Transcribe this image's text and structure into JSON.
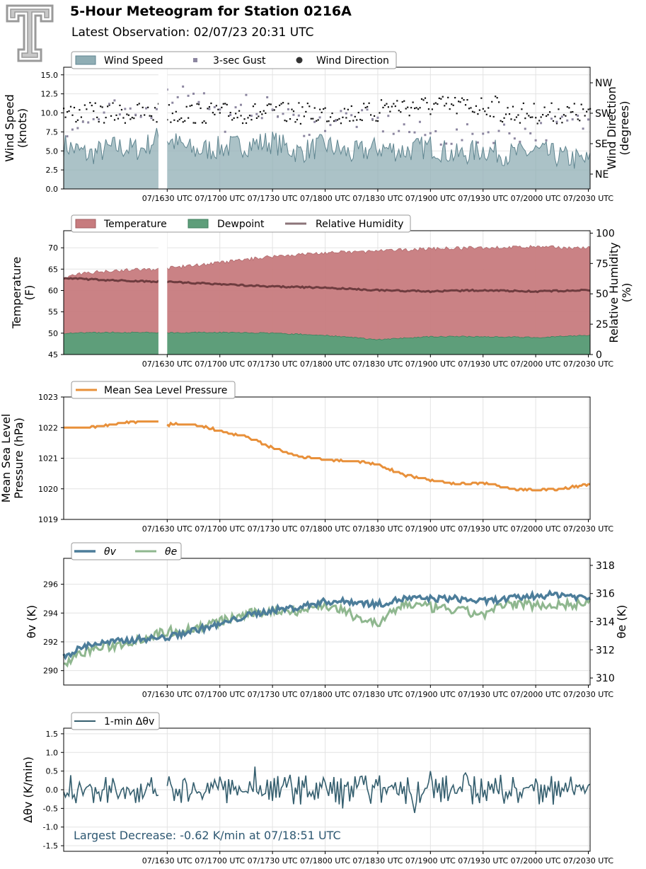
{
  "header": {
    "title": "5-Hour Meteogram for Station 0216A",
    "subtitle": "Latest Observation: 02/07/23 20:31 UTC",
    "logo": "tt-logo"
  },
  "time_ticks": [
    "07/1630 UTC",
    "07/1700 UTC",
    "07/1730 UTC",
    "07/1800 UTC",
    "07/1830 UTC",
    "07/1900 UTC",
    "07/1930 UTC",
    "07/2000 UTC",
    "07/2030 UTC"
  ],
  "chart_data": [
    {
      "id": "wind",
      "type": "area",
      "ylabel": [
        "Wind Speed",
        "(knots)"
      ],
      "ylabel2": [
        "Wind Direction",
        "(degrees)"
      ],
      "ylim": [
        0,
        16
      ],
      "yticks": [
        "0.0",
        "2.5",
        "5.0",
        "7.5",
        "10.0",
        "12.5",
        "15.0"
      ],
      "y2ticks": [
        "NE",
        "SE",
        "SW",
        "NW"
      ],
      "x_range_utc": [
        "15:31",
        "20:31"
      ],
      "data_gap_utc": [
        "16:25",
        "16:30"
      ],
      "legend": [
        "Wind Speed",
        "3-sec Gust",
        "Wind Direction"
      ],
      "series": [
        {
          "name": "Wind Speed",
          "x_utc": [
            "15:31",
            "15:45",
            "16:00",
            "16:15",
            "16:25",
            "16:30",
            "16:45",
            "17:00",
            "17:15",
            "17:30",
            "17:45",
            "18:00",
            "18:15",
            "18:30",
            "18:45",
            "19:00",
            "19:15",
            "19:30",
            "19:45",
            "20:00",
            "20:15",
            "20:31"
          ],
          "values": [
            5.8,
            4.5,
            5.5,
            5.2,
            6.8,
            6.5,
            5.0,
            5.4,
            5.8,
            6.2,
            4.8,
            5.8,
            4.6,
            5.4,
            5.0,
            5.6,
            4.4,
            5.2,
            4.5,
            5.0,
            4.2,
            3.6
          ]
        },
        {
          "name": "3-sec Gust",
          "x_utc": [
            "15:40",
            "16:00",
            "16:10",
            "16:35",
            "16:45",
            "17:05",
            "17:15",
            "17:30",
            "17:50",
            "18:10",
            "18:35",
            "18:55",
            "19:15",
            "19:35",
            "20:00",
            "20:20"
          ],
          "values": [
            8.2,
            10.3,
            9.0,
            12.8,
            13.2,
            8.5,
            11.0,
            10.5,
            8.2,
            9.5,
            8.5,
            7.3,
            6.8,
            7.5,
            7.5,
            8.6
          ]
        },
        {
          "name": "Wind Direction",
          "x_utc": [
            "15:31",
            "16:00",
            "16:30",
            "17:00",
            "17:30",
            "18:00",
            "18:30",
            "19:00",
            "19:30",
            "20:00",
            "20:31"
          ],
          "values": [
            "SW",
            "SW",
            "SW",
            "SW",
            "SW",
            "SW",
            "SW",
            "SW",
            "SW",
            "SW",
            "SW"
          ]
        }
      ],
      "colors": {
        "Wind Speed": "#8fadb4",
        "3-sec Gust": "#8c86a0",
        "Wind Direction": "#111111"
      }
    },
    {
      "id": "temp",
      "type": "area",
      "ylabel": [
        "Temperature",
        "(F)"
      ],
      "ylabel2": [
        "Relative Humidity",
        "(%)"
      ],
      "ylim": [
        45,
        74
      ],
      "yticks": [
        "45",
        "50",
        "55",
        "60",
        "65",
        "70"
      ],
      "y2lim": [
        0,
        102
      ],
      "y2ticks": [
        "0",
        "25",
        "50",
        "75",
        "100"
      ],
      "x_range_utc": [
        "15:31",
        "20:31"
      ],
      "data_gap_utc": [
        "16:25",
        "16:30"
      ],
      "legend": [
        "Temperature",
        "Dewpoint",
        "Relative Humidity"
      ],
      "series": [
        {
          "name": "Temperature",
          "x_utc": [
            "15:31",
            "15:45",
            "16:00",
            "16:25",
            "16:30",
            "17:00",
            "17:30",
            "18:00",
            "18:30",
            "19:00",
            "19:30",
            "20:00",
            "20:31"
          ],
          "values": [
            63.0,
            64.2,
            64.7,
            65.0,
            65.2,
            66.5,
            68.0,
            68.8,
            69.2,
            69.8,
            70.0,
            70.2,
            69.9
          ]
        },
        {
          "name": "Dewpoint",
          "x_utc": [
            "15:31",
            "16:00",
            "16:30",
            "17:00",
            "17:30",
            "18:00",
            "18:30",
            "19:00",
            "19:30",
            "20:00",
            "20:31"
          ],
          "values": [
            50.0,
            50.2,
            50.1,
            50.2,
            50.0,
            49.5,
            48.5,
            49.2,
            49.2,
            49.0,
            49.5
          ]
        },
        {
          "name": "Relative Humidity",
          "x_utc": [
            "15:31",
            "16:00",
            "16:30",
            "17:00",
            "17:30",
            "18:00",
            "18:30",
            "19:00",
            "19:30",
            "20:00",
            "20:31"
          ],
          "values": [
            63,
            61,
            60,
            58,
            56,
            55,
            53,
            52,
            53,
            52,
            53
          ]
        }
      ],
      "colors": {
        "Temperature": "#c77b7e",
        "Dewpoint": "#5e9e7a",
        "Relative Humidity": "#6e3c3f"
      }
    },
    {
      "id": "pressure",
      "type": "line",
      "ylabel": [
        "Mean Sea Level",
        "Pressure (hPa)"
      ],
      "ylim": [
        1019,
        1023
      ],
      "yticks": [
        "1019",
        "1020",
        "1021",
        "1022",
        "1023"
      ],
      "x_range_utc": [
        "15:31",
        "20:31"
      ],
      "data_gap_utc": [
        "16:25",
        "16:30"
      ],
      "legend": [
        "Mean Sea Level Pressure"
      ],
      "series": [
        {
          "name": "Mean Sea Level Pressure",
          "x_utc": [
            "15:31",
            "15:45",
            "16:00",
            "16:10",
            "16:25",
            "16:30",
            "16:45",
            "17:00",
            "17:15",
            "17:30",
            "17:45",
            "18:00",
            "18:15",
            "18:30",
            "18:45",
            "19:00",
            "19:15",
            "19:30",
            "19:45",
            "20:00",
            "20:15",
            "20:31"
          ],
          "values": [
            1022.0,
            1022.0,
            1022.1,
            1022.2,
            1022.2,
            1022.1,
            1022.1,
            1021.9,
            1021.7,
            1021.35,
            1021.05,
            1020.95,
            1020.9,
            1020.8,
            1020.45,
            1020.3,
            1020.15,
            1020.2,
            1020.0,
            1019.95,
            1020.0,
            1020.15
          ]
        }
      ],
      "colors": {
        "Mean Sea Level Pressure": "#e8903a"
      }
    },
    {
      "id": "theta",
      "type": "line",
      "ylabel": [
        "θv (K)"
      ],
      "ylabel2": [
        "θe (K)"
      ],
      "ylim": [
        289,
        297.8
      ],
      "yticks": [
        "290",
        "292",
        "294",
        "296"
      ],
      "y2lim": [
        309.5,
        318.5
      ],
      "y2ticks": [
        "310",
        "312",
        "314",
        "316",
        "318"
      ],
      "x_range_utc": [
        "15:31",
        "20:31"
      ],
      "legend": [
        "θv",
        "θe"
      ],
      "series": [
        {
          "name": "θv",
          "x_utc": [
            "15:31",
            "15:45",
            "16:00",
            "16:15",
            "16:30",
            "16:45",
            "17:00",
            "17:15",
            "17:30",
            "17:45",
            "18:00",
            "18:15",
            "18:30",
            "18:45",
            "19:00",
            "19:15",
            "19:30",
            "19:45",
            "20:00",
            "20:15",
            "20:31"
          ],
          "values": [
            291.0,
            291.8,
            292.0,
            292.2,
            292.3,
            292.8,
            293.2,
            293.8,
            294.2,
            294.4,
            294.8,
            294.8,
            294.6,
            295.0,
            295.0,
            295.0,
            294.8,
            295.0,
            295.2,
            295.3,
            295.0
          ]
        },
        {
          "name": "θe",
          "x_utc": [
            "15:31",
            "15:45",
            "16:00",
            "16:15",
            "16:30",
            "16:45",
            "17:00",
            "17:15",
            "17:30",
            "17:45",
            "18:00",
            "18:15",
            "18:30",
            "18:45",
            "19:00",
            "19:15",
            "19:30",
            "19:45",
            "20:00",
            "20:15",
            "20:31"
          ],
          "values": [
            311.0,
            312.0,
            312.3,
            312.8,
            313.3,
            313.5,
            314.0,
            314.5,
            314.8,
            314.8,
            315.2,
            314.5,
            313.8,
            315.3,
            315.0,
            314.8,
            314.5,
            315.3,
            315.2,
            315.2,
            315.3
          ]
        }
      ],
      "colors": {
        "θv": "#4c7d9a",
        "θe": "#8fb78f"
      }
    },
    {
      "id": "dtheta",
      "type": "line",
      "ylabel": [
        "Δθv (K/min)"
      ],
      "ylim": [
        -1.65,
        1.65
      ],
      "yticks": [
        "-1.5",
        "-1.0",
        "-0.5",
        "0.0",
        "0.5",
        "1.0",
        "1.5"
      ],
      "x_range_utc": [
        "15:31",
        "20:31"
      ],
      "data_gap_utc": [
        "16:25",
        "16:30"
      ],
      "legend": [
        "1-min Δθv"
      ],
      "annotation": "Largest Decrease: -0.62 K/min at 07/18:51 UTC",
      "series": [
        {
          "name": "1-min Δθv",
          "x_utc": [
            "15:31",
            "15:40",
            "15:50",
            "16:00",
            "16:10",
            "16:20",
            "16:30",
            "16:40",
            "16:50",
            "17:00",
            "17:10",
            "17:20",
            "17:30",
            "17:40",
            "17:50",
            "18:00",
            "18:10",
            "18:20",
            "18:30",
            "18:40",
            "18:51",
            "19:00",
            "19:10",
            "19:20",
            "19:30",
            "19:40",
            "19:50",
            "20:00",
            "20:10",
            "20:20",
            "20:31"
          ],
          "values": [
            -0.05,
            0.2,
            -0.1,
            0.15,
            -0.05,
            0.1,
            0.1,
            0.3,
            -0.25,
            0.35,
            -0.15,
            0.62,
            -0.3,
            0.4,
            -0.2,
            0.2,
            -0.5,
            0.35,
            0.1,
            0.2,
            -0.62,
            0.5,
            -0.3,
            0.45,
            -0.2,
            0.4,
            -0.35,
            0.3,
            -0.4,
            0.35,
            0.15
          ]
        }
      ],
      "colors": {
        "1-min Δθv": "#345e6e",
        "annotation": "#2e5872"
      }
    }
  ]
}
